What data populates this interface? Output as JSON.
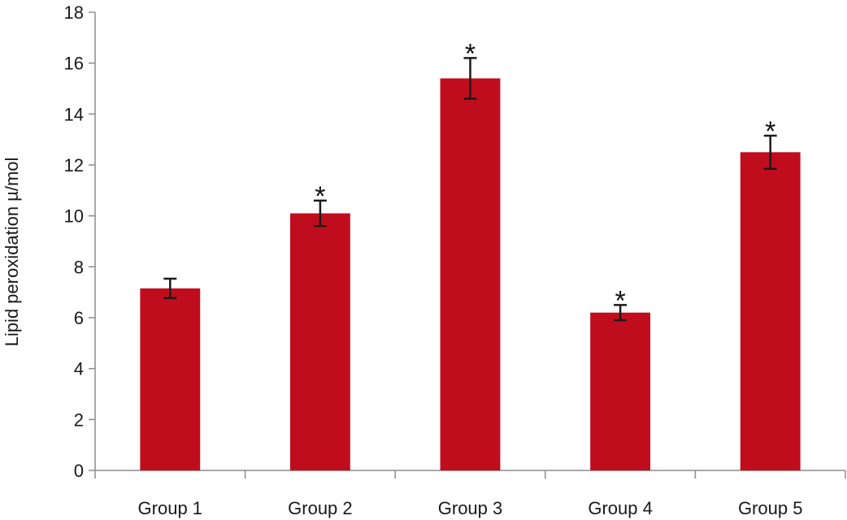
{
  "chart_data": {
    "type": "bar",
    "title": "",
    "xlabel": "",
    "ylabel": "Lipid peroxidation µ/mol",
    "categories": [
      "Group 1",
      "Group 2",
      "Group 3",
      "Group 4",
      "Group 5"
    ],
    "values": [
      7.15,
      10.1,
      15.4,
      6.2,
      12.5
    ],
    "error": [
      0.38,
      0.5,
      0.8,
      0.3,
      0.65
    ],
    "significance": [
      "",
      "*",
      "*",
      "*",
      "*"
    ],
    "ylim": [
      0,
      18
    ],
    "yticks": [
      "0",
      "2",
      "4",
      "6",
      "8",
      "10",
      "12",
      "14",
      "16",
      "18"
    ],
    "grid": false,
    "legend": "none",
    "bar_color": "#c00d1e",
    "axis_color": "#8c8c8c",
    "error_color": "#1a1a1a"
  }
}
